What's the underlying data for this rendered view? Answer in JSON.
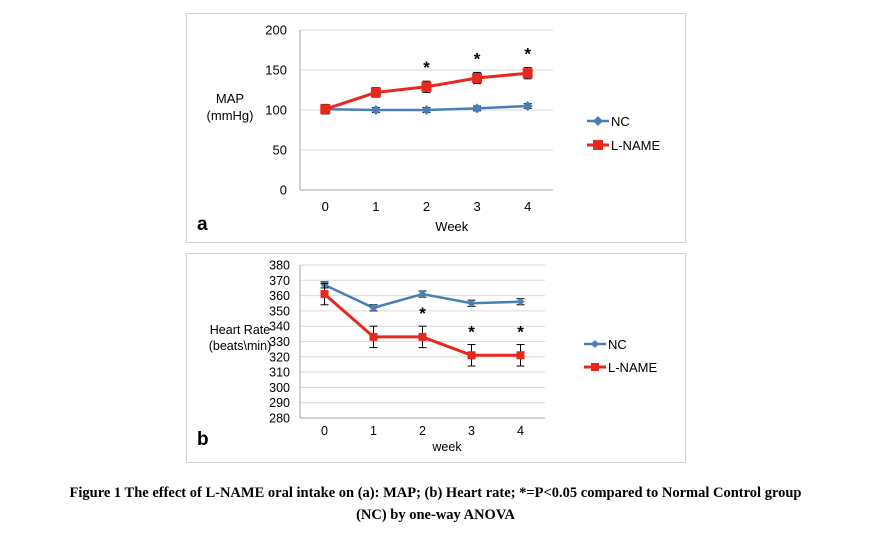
{
  "colors": {
    "nc": "#4a7ebb",
    "lname": "#e8281e",
    "grid": "#d9d9d9",
    "star": "#000000"
  },
  "caption": {
    "line1": "Figure 1 The effect of L-NAME oral intake on (a): MAP; (b) Heart rate; *=P<0.05 compared to Normal Control group",
    "line2": "(NC) by one-way ANOVA"
  },
  "chart_data": [
    {
      "type": "line",
      "panel_label": "a",
      "categories": [
        "0",
        "1",
        "2",
        "3",
        "4"
      ],
      "xlabel": "Week",
      "ylabel_lines": [
        "MAP",
        "(mmHg)"
      ],
      "ylim": [
        0,
        200
      ],
      "yticks": [
        0,
        50,
        100,
        150,
        200
      ],
      "grid": true,
      "legend_position": "right",
      "series": [
        {
          "name": "NC",
          "color": "#4a7ebb",
          "marker": "diamond",
          "values": [
            101,
            100,
            100,
            102,
            105
          ],
          "errors": [
            3,
            3,
            3,
            3,
            3
          ]
        },
        {
          "name": "L-NAME",
          "color": "#e8281e",
          "marker": "square",
          "values": [
            101,
            122,
            129,
            140,
            146
          ],
          "errors": [
            6,
            6,
            7,
            7,
            7
          ]
        }
      ],
      "significance": {
        "symbol": "*",
        "categories": [
          "2",
          "3",
          "4"
        ]
      }
    },
    {
      "type": "line",
      "panel_label": "b",
      "categories": [
        "0",
        "1",
        "2",
        "3",
        "4"
      ],
      "xlabel": "week",
      "ylabel_lines": [
        "Heart Rate",
        "(beats\\min)"
      ],
      "ylim": [
        280,
        380
      ],
      "yticks": [
        280,
        290,
        300,
        310,
        320,
        330,
        340,
        350,
        360,
        370,
        380
      ],
      "grid": true,
      "legend_position": "right",
      "series": [
        {
          "name": "NC",
          "color": "#4a7ebb",
          "marker": "diamond",
          "values": [
            367,
            352,
            361,
            355,
            356
          ],
          "errors": [
            2,
            2,
            2,
            2,
            2
          ]
        },
        {
          "name": "L-NAME",
          "color": "#e8281e",
          "marker": "square",
          "values": [
            361,
            333,
            333,
            321,
            321
          ],
          "errors": [
            7,
            7,
            7,
            7,
            7
          ]
        }
      ],
      "significance": {
        "symbol": "*",
        "categories": [
          "2",
          "3",
          "4"
        ]
      }
    }
  ]
}
